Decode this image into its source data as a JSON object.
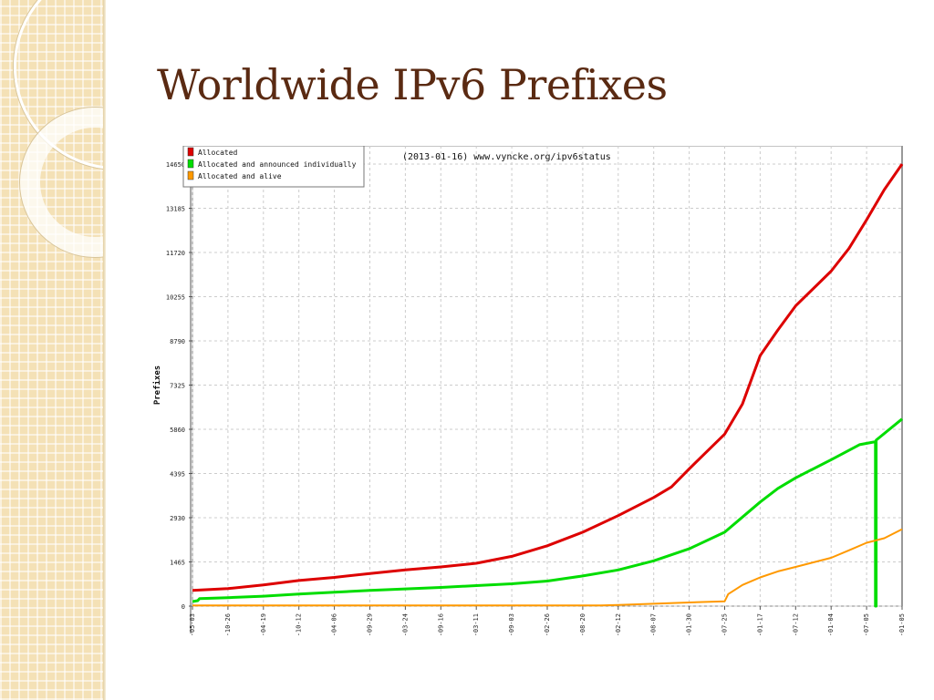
{
  "slide": {
    "title": "Worldwide IPv6 Prefixes"
  },
  "chart_data": {
    "type": "line",
    "title": "(2013-01-16) www.vyncke.org/ipv6status",
    "ylabel": "Prefixes",
    "xlabel": "",
    "ylim": [
      0,
      14650
    ],
    "y_ticks": [
      0,
      1465,
      2930,
      4395,
      5860,
      7325,
      8790,
      10255,
      11720,
      13185,
      14650
    ],
    "x_tick_labels": [
      "-05-03",
      "-10-26",
      "-04-19",
      "-10-12",
      "-04-06",
      "-09-29",
      "-03-24",
      "-09-16",
      "-03-11",
      "-09-03",
      "-02-26",
      "-08-20",
      "-02-12",
      "-08-07",
      "-01-30",
      "-07-25",
      "-01-17",
      "-07-12",
      "-01-04",
      "-07-05",
      "-01-05"
    ],
    "x_range": [
      0,
      20
    ],
    "grid": true,
    "legend_position": "top-left",
    "series": [
      {
        "name": "Allocated",
        "color": "#dd0000",
        "points": [
          [
            0,
            520
          ],
          [
            1,
            580
          ],
          [
            2,
            700
          ],
          [
            3,
            850
          ],
          [
            4,
            950
          ],
          [
            5,
            1080
          ],
          [
            6,
            1200
          ],
          [
            7,
            1300
          ],
          [
            8,
            1420
          ],
          [
            9,
            1650
          ],
          [
            10,
            2000
          ],
          [
            11,
            2450
          ],
          [
            12,
            3000
          ],
          [
            13,
            3600
          ],
          [
            13.5,
            3950
          ],
          [
            14,
            4550
          ],
          [
            15,
            5700
          ],
          [
            15.5,
            6700
          ],
          [
            16,
            8300
          ],
          [
            16.5,
            9150
          ],
          [
            17,
            9950
          ],
          [
            18,
            11100
          ],
          [
            18.5,
            11850
          ],
          [
            19,
            12800
          ],
          [
            19.5,
            13800
          ],
          [
            20,
            14650
          ]
        ]
      },
      {
        "name": "Allocated and announced individually",
        "color": "#00dd00",
        "points": [
          [
            0,
            150
          ],
          [
            0.15,
            180
          ],
          [
            0.2,
            250
          ],
          [
            1,
            280
          ],
          [
            2,
            330
          ],
          [
            3,
            400
          ],
          [
            4,
            460
          ],
          [
            5,
            520
          ],
          [
            6,
            570
          ],
          [
            7,
            620
          ],
          [
            8,
            680
          ],
          [
            9,
            740
          ],
          [
            10,
            830
          ],
          [
            11,
            1000
          ],
          [
            12,
            1200
          ],
          [
            13,
            1500
          ],
          [
            14,
            1900
          ],
          [
            15,
            2450
          ],
          [
            15.5,
            2950
          ],
          [
            16,
            3450
          ],
          [
            16.5,
            3900
          ],
          [
            17,
            4250
          ],
          [
            18,
            4850
          ],
          [
            18.8,
            5350
          ],
          [
            19.25,
            5450
          ],
          [
            19.25,
            0
          ],
          [
            19.27,
            0
          ],
          [
            19.27,
            5500
          ],
          [
            20,
            6200
          ]
        ]
      },
      {
        "name": "Allocated and alive",
        "color": "#ff9900",
        "points": [
          [
            0,
            20
          ],
          [
            11.5,
            20
          ],
          [
            12,
            40
          ],
          [
            13,
            80
          ],
          [
            14,
            120
          ],
          [
            15,
            160
          ],
          [
            15.1,
            400
          ],
          [
            15.5,
            700
          ],
          [
            16,
            950
          ],
          [
            16.5,
            1150
          ],
          [
            17,
            1300
          ],
          [
            18,
            1600
          ],
          [
            18.5,
            1850
          ],
          [
            19,
            2100
          ],
          [
            19.5,
            2250
          ],
          [
            20,
            2550
          ]
        ]
      }
    ]
  }
}
